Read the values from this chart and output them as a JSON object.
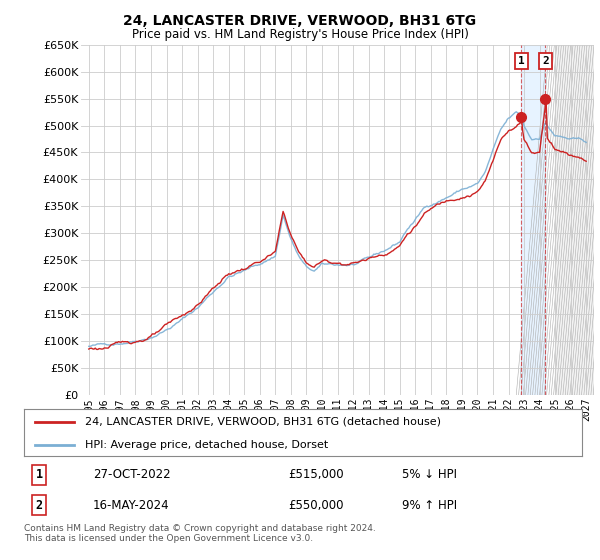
{
  "title": "24, LANCASTER DRIVE, VERWOOD, BH31 6TG",
  "subtitle": "Price paid vs. HM Land Registry's House Price Index (HPI)",
  "ylabel_ticks": [
    "£0",
    "£50K",
    "£100K",
    "£150K",
    "£200K",
    "£250K",
    "£300K",
    "£350K",
    "£400K",
    "£450K",
    "£500K",
    "£550K",
    "£600K",
    "£650K"
  ],
  "ytick_values": [
    0,
    50000,
    100000,
    150000,
    200000,
    250000,
    300000,
    350000,
    400000,
    450000,
    500000,
    550000,
    600000,
    650000
  ],
  "xlabels": [
    "1995",
    "1996",
    "1997",
    "1998",
    "1999",
    "2000",
    "2001",
    "2002",
    "2003",
    "2004",
    "2005",
    "2006",
    "2007",
    "2008",
    "2009",
    "2010",
    "2011",
    "2012",
    "2013",
    "2014",
    "2015",
    "2016",
    "2017",
    "2018",
    "2019",
    "2020",
    "2021",
    "2022",
    "2023",
    "2024",
    "2025",
    "2026",
    "2027"
  ],
  "hpi_color": "#7bafd4",
  "price_color": "#cc2222",
  "legend_entries": [
    "24, LANCASTER DRIVE, VERWOOD, BH31 6TG (detached house)",
    "HPI: Average price, detached house, Dorset"
  ],
  "transactions": [
    {
      "label": "1",
      "date": "27-OCT-2022",
      "price": "£515,000",
      "hpi_note": "5% ↓ HPI",
      "x": 2022.83
    },
    {
      "label": "2",
      "date": "16-MAY-2024",
      "price": "£550,000",
      "hpi_note": "9% ↑ HPI",
      "x": 2024.38
    }
  ],
  "footer": "Contains HM Land Registry data © Crown copyright and database right 2024.\nThis data is licensed under the Open Government Licence v3.0.",
  "background_color": "#ffffff",
  "grid_color": "#cccccc",
  "shade_xmin": 2022.83,
  "shade_xmax": 2024.38,
  "hatch_xmin": 2025.0,
  "hatch_xmax": 2027.5,
  "xmin": 1994.5,
  "xmax": 2027.5,
  "ymin": 0,
  "ymax": 650000
}
